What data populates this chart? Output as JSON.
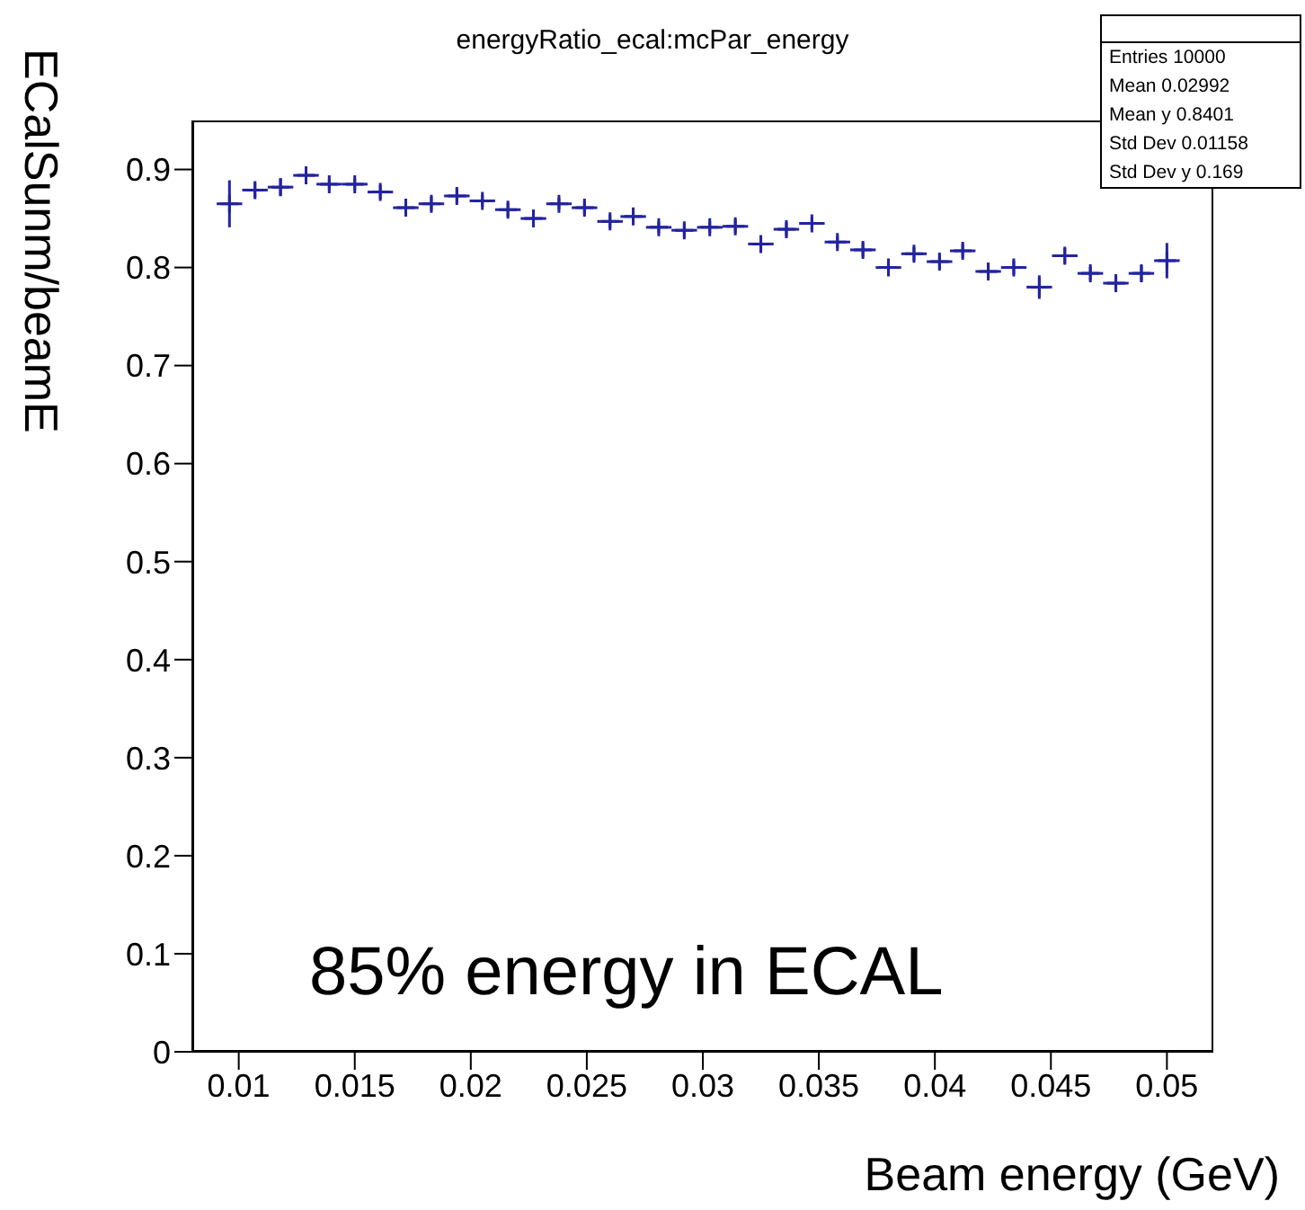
{
  "chart_data": {
    "type": "scatter",
    "title": "energyRatio_ecal:mcPar_energy",
    "xlabel": "Beam energy (GeV)",
    "ylabel": "ECalSunm/beamE",
    "annotations": [
      "85% energy in ECAL",
      "Entries 10000",
      "Mean 0.02992",
      "Mean y 0.8401",
      "Std Dev 0.01158",
      "Std Dev y 0.169"
    ],
    "x": [
      0.0096,
      0.0107,
      0.0118,
      0.0129,
      0.0139,
      0.015,
      0.0161,
      0.0172,
      0.0183,
      0.0194,
      0.0205,
      0.0216,
      0.0227,
      0.0238,
      0.0249,
      0.026,
      0.027,
      0.0281,
      0.0292,
      0.0303,
      0.0314,
      0.0325,
      0.0336,
      0.0347,
      0.0358,
      0.0369,
      0.038,
      0.0391,
      0.0402,
      0.0412,
      0.0423,
      0.0434,
      0.0445,
      0.0456,
      0.0467,
      0.0478,
      0.0489,
      0.05
    ],
    "series": [
      {
        "color": "#2323a0",
        "values": [
          0.865,
          0.879,
          0.882,
          0.894,
          0.885,
          0.885,
          0.877,
          0.861,
          0.865,
          0.873,
          0.868,
          0.859,
          0.85,
          0.865,
          0.861,
          0.847,
          0.852,
          0.841,
          0.838,
          0.841,
          0.842,
          0.824,
          0.839,
          0.845,
          0.826,
          0.818,
          0.8,
          0.814,
          0.806,
          0.817,
          0.796,
          0.8,
          0.78,
          0.812,
          0.794,
          0.784,
          0.794,
          0.807
        ],
        "errors": [
          0.024,
          0.008,
          0.009,
          0.007,
          0.006,
          0.006,
          0.007,
          0.007,
          0.007,
          0.007,
          0.006,
          0.007,
          0.007,
          0.006,
          0.007,
          0.007,
          0.006,
          0.006,
          0.007,
          0.006,
          0.007,
          0.007,
          0.007,
          0.006,
          0.006,
          0.007,
          0.008,
          0.007,
          0.007,
          0.007,
          0.007,
          0.007,
          0.012,
          0.008,
          0.007,
          0.007,
          0.008,
          0.018
        ],
        "xerrors": [
          0.00055,
          0.00055,
          0.00055,
          0.00055,
          0.00055,
          0.00055,
          0.00055,
          0.00055,
          0.00055,
          0.00055,
          0.00055,
          0.00055,
          0.00055,
          0.00055,
          0.00055,
          0.00055,
          0.00055,
          0.00055,
          0.00055,
          0.00055,
          0.00055,
          0.00055,
          0.00055,
          0.00055,
          0.00055,
          0.00055,
          0.00055,
          0.00055,
          0.00055,
          0.00055,
          0.00055,
          0.00055,
          0.00055,
          0.00055,
          0.00055,
          0.00055,
          0.00055,
          0.00055
        ]
      }
    ],
    "xlim": [
      0.008,
      0.052
    ],
    "xticks": [
      0.01,
      0.015,
      0.02,
      0.025,
      0.03,
      0.035,
      0.04,
      0.045,
      0.05
    ],
    "ylim": [
      0,
      0.95
    ],
    "yticks": [
      0,
      0.1,
      0.2,
      0.3,
      0.4,
      0.5,
      0.6,
      0.7,
      0.8,
      0.9
    ],
    "grid": false,
    "marker": "cross"
  }
}
